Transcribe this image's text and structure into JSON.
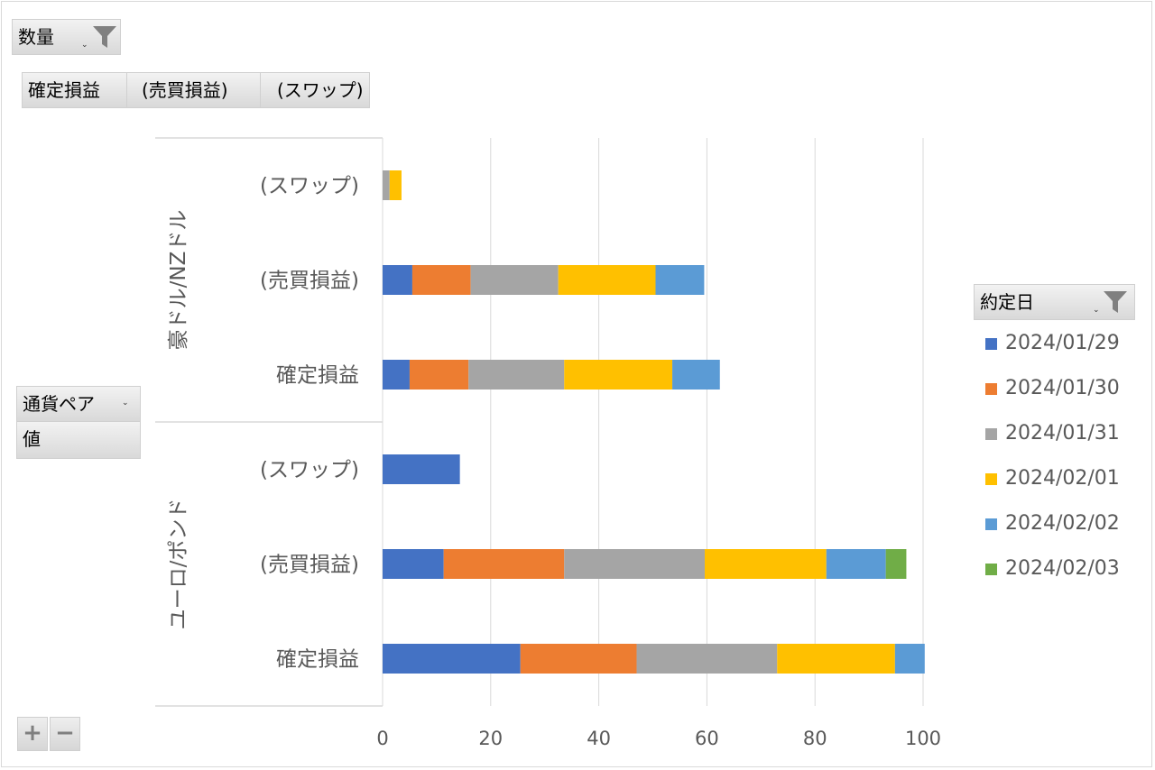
{
  "filter_field": {
    "label": "数量",
    "icon": "filter-icon"
  },
  "column_fields": [
    {
      "label": "確定損益"
    },
    {
      "label": "(売買損益)"
    },
    {
      "label": "(スワップ)"
    }
  ],
  "row_fields": [
    {
      "label": "通貨ペア"
    },
    {
      "label": "値"
    }
  ],
  "legend_field": {
    "label": "約定日",
    "icon": "filter-icon"
  },
  "zoom": {
    "plus": "+",
    "minus": "−"
  },
  "chart_data": {
    "type": "bar",
    "orientation": "horizontal",
    "stacked": true,
    "groups": [
      "豪ドル/NZドル",
      "ユーロ/ポンド"
    ],
    "categories": [
      "(スワップ)",
      "(売買損益)",
      "確定損益",
      "(スワップ)",
      "(売買損益)",
      "確定損益"
    ],
    "category_group": [
      0,
      0,
      0,
      1,
      1,
      1
    ],
    "series": [
      {
        "name": "2024/01/29",
        "color": "#4472c4",
        "values": [
          0,
          5.5,
          5,
          14.3,
          11.3,
          25.5
        ]
      },
      {
        "name": "2024/01/30",
        "color": "#ed7d31",
        "values": [
          0,
          10.8,
          10.9,
          0,
          22.3,
          21.5
        ]
      },
      {
        "name": "2024/01/31",
        "color": "#a5a5a5",
        "values": [
          1.3,
          16.2,
          17.7,
          0,
          26,
          26
        ]
      },
      {
        "name": "2024/02/01",
        "color": "#ffc000",
        "values": [
          2.2,
          18,
          20,
          0,
          22.5,
          21.8
        ]
      },
      {
        "name": "2024/02/02",
        "color": "#5b9bd5",
        "values": [
          0,
          9,
          8.8,
          0,
          11,
          5.5
        ]
      },
      {
        "name": "2024/02/03",
        "color": "#70ad47",
        "values": [
          0,
          0,
          0,
          0,
          3.8,
          0
        ]
      }
    ],
    "xlim": [
      0,
      100
    ],
    "xticks": [
      "0",
      "20",
      "40",
      "60",
      "80",
      "100"
    ],
    "grid": true,
    "legend": "right"
  }
}
